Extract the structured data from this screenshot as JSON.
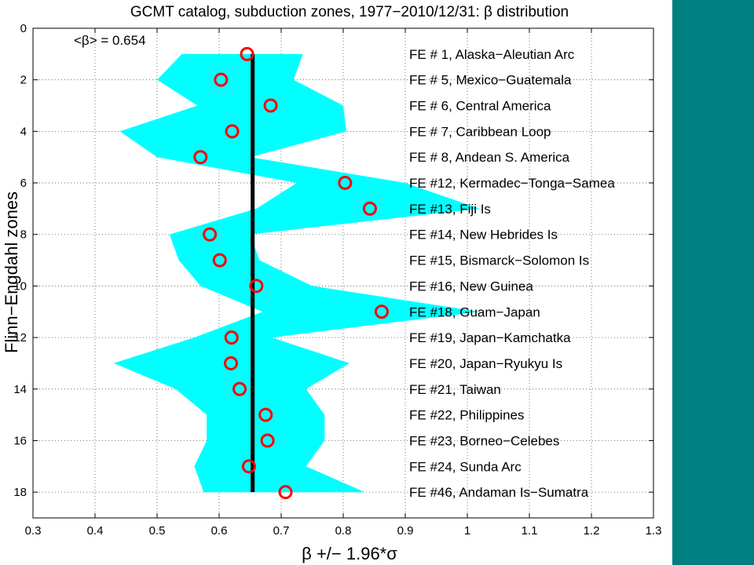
{
  "colors": {
    "band": "#00ffff",
    "mean_line": "#000000",
    "markers": "#ff0000",
    "side_panel": "#007f80",
    "grid": "#555555"
  },
  "chart_data": {
    "type": "scatter",
    "title": "GCMT catalog, subduction zones, 1977−2010/12/31: β distribution",
    "xlabel": "β +/− 1.96*σ",
    "ylabel": "Flinn−Engdahl zones",
    "xlim": [
      0.3,
      1.3
    ],
    "ylim": [
      0,
      19
    ],
    "y_reversed": true,
    "x_ticks": [
      "0.3",
      "0.4",
      "0.5",
      "0.6",
      "0.7",
      "0.8",
      "0.9",
      "1",
      "1.1",
      "1.2",
      "1.3"
    ],
    "y_ticks": [
      "0",
      "2",
      "4",
      "6",
      "8",
      "10",
      "12",
      "14",
      "16",
      "18"
    ],
    "grid": true,
    "mean_label": "<β> = 0.654",
    "mean_beta": 0.654,
    "points": [
      {
        "row": 1,
        "beta": 0.645,
        "zone": "FE # 1, Alaska−Aleutian Arc",
        "lower": 0.54,
        "upper": 0.735
      },
      {
        "row": 2,
        "beta": 0.603,
        "zone": "FE # 5, Mexico−Guatemala",
        "lower": 0.5,
        "upper": 0.72
      },
      {
        "row": 3,
        "beta": 0.683,
        "zone": "FE # 6, Central America",
        "lower": 0.565,
        "upper": 0.8
      },
      {
        "row": 4,
        "beta": 0.621,
        "zone": "FE # 7, Caribbean Loop",
        "lower": 0.44,
        "upper": 0.805
      },
      {
        "row": 5,
        "beta": 0.57,
        "zone": "FE # 8, Andean S. America",
        "lower": 0.5,
        "upper": 0.65
      },
      {
        "row": 6,
        "beta": 0.803,
        "zone": "FE #12, Kermadec−Tonga−Samea",
        "lower": 0.725,
        "upper": 0.9
      },
      {
        "row": 7,
        "beta": 0.843,
        "zone": "FE #13, Fiji Is",
        "lower": 0.66,
        "upper": 1.02
      },
      {
        "row": 8,
        "beta": 0.585,
        "zone": "FE #14, New Hebrides Is",
        "lower": 0.52,
        "upper": 0.65
      },
      {
        "row": 9,
        "beta": 0.601,
        "zone": "FE #15, Bismarck−Solomon Is",
        "lower": 0.535,
        "upper": 0.665
      },
      {
        "row": 10,
        "beta": 0.66,
        "zone": "FE #16, New Guinea",
        "lower": 0.57,
        "upper": 0.75
      },
      {
        "row": 11,
        "beta": 0.862,
        "zone": "FE #18, Guam−Japan",
        "lower": 0.67,
        "upper": 1.02
      },
      {
        "row": 12,
        "beta": 0.62,
        "zone": "FE #19, Japan−Kamchatka",
        "lower": 0.56,
        "upper": 0.685
      },
      {
        "row": 13,
        "beta": 0.619,
        "zone": "FE #20, Japan−Ryukyu Is",
        "lower": 0.43,
        "upper": 0.81
      },
      {
        "row": 14,
        "beta": 0.633,
        "zone": "FE #21, Taiwan",
        "lower": 0.53,
        "upper": 0.74
      },
      {
        "row": 15,
        "beta": 0.675,
        "zone": "FE #22, Philippines",
        "lower": 0.58,
        "upper": 0.77
      },
      {
        "row": 16,
        "beta": 0.678,
        "zone": "FE #23, Borneo−Celebes",
        "lower": 0.58,
        "upper": 0.77
      },
      {
        "row": 17,
        "beta": 0.648,
        "zone": "FE #24, Sunda Arc",
        "lower": 0.56,
        "upper": 0.74
      },
      {
        "row": 18,
        "beta": 0.707,
        "zone": "FE #46, Andaman Is−Sumatra",
        "lower": 0.575,
        "upper": 0.835
      }
    ]
  }
}
